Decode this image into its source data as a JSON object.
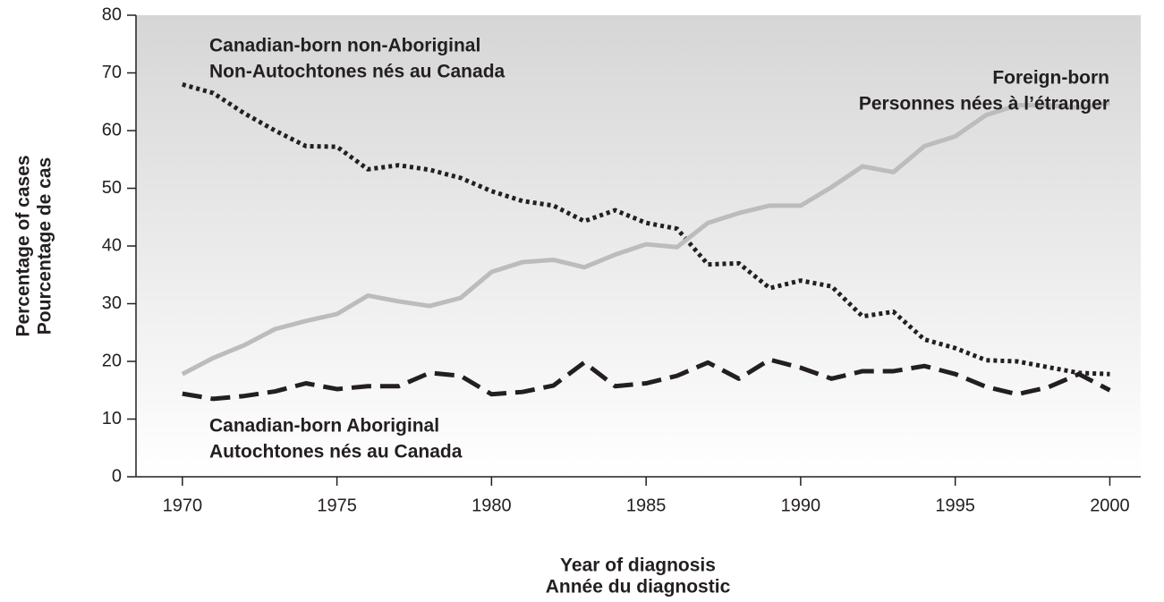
{
  "chart_data": {
    "type": "line",
    "xlabel": [
      "Year of diagnosis",
      "Année du diagnostic"
    ],
    "ylabel": [
      "Percentage of cases",
      "Pourcentage de cas"
    ],
    "x": [
      1970,
      1971,
      1972,
      1973,
      1974,
      1975,
      1976,
      1977,
      1978,
      1979,
      1980,
      1981,
      1982,
      1983,
      1984,
      1985,
      1986,
      1987,
      1988,
      1989,
      1990,
      1991,
      1992,
      1993,
      1994,
      1995,
      1996,
      1997,
      1998,
      1999,
      2000
    ],
    "series": [
      {
        "name": "Canadian-born non-Aboriginal",
        "name_fr": "Non-Autochtones nés au Canada",
        "color": "#231f20",
        "style": "dotted",
        "values": [
          68,
          66.5,
          63,
          60,
          57.3,
          57.2,
          53.3,
          54,
          53.2,
          51.8,
          49.5,
          47.8,
          47,
          44.3,
          46.2,
          44,
          43,
          36.8,
          37,
          32.7,
          34,
          33,
          27.8,
          28.6,
          23.8,
          22.3,
          20.2,
          20,
          19,
          18,
          17.8
        ]
      },
      {
        "name": "Foreign-born",
        "name_fr": "Personnes nées à l’étranger",
        "color": "#bcbcbc",
        "style": "solid",
        "values": [
          17.8,
          20.6,
          22.8,
          25.6,
          27,
          28.2,
          31.4,
          30.4,
          29.6,
          31,
          35.5,
          37.2,
          37.6,
          36.3,
          38.5,
          40.3,
          39.8,
          44,
          45.7,
          47,
          47,
          50.2,
          53.8,
          52.8,
          57.3,
          59,
          62.7,
          64.4,
          64.4,
          64,
          64.8
        ]
      },
      {
        "name": "Canadian-born Aboriginal",
        "name_fr": "Autochtones nés au Canada",
        "color": "#231f20",
        "style": "dashed",
        "values": [
          14.4,
          13.5,
          14,
          14.8,
          16.2,
          15.2,
          15.7,
          15.7,
          18,
          17.5,
          14.3,
          14.7,
          15.8,
          19.8,
          15.7,
          16.2,
          17.5,
          19.8,
          17,
          20.3,
          18.9,
          17,
          18.3,
          18.3,
          19.2,
          17.8,
          15.6,
          14.3,
          15.5,
          17.8,
          15
        ]
      }
    ],
    "xlim": [
      1968.5,
      2001
    ],
    "xticks": [
      1970,
      1975,
      1980,
      1985,
      1990,
      1995,
      2000
    ],
    "ylim": [
      0,
      80
    ],
    "yticks": [
      0,
      10,
      20,
      30,
      40,
      50,
      60,
      70,
      80
    ]
  }
}
